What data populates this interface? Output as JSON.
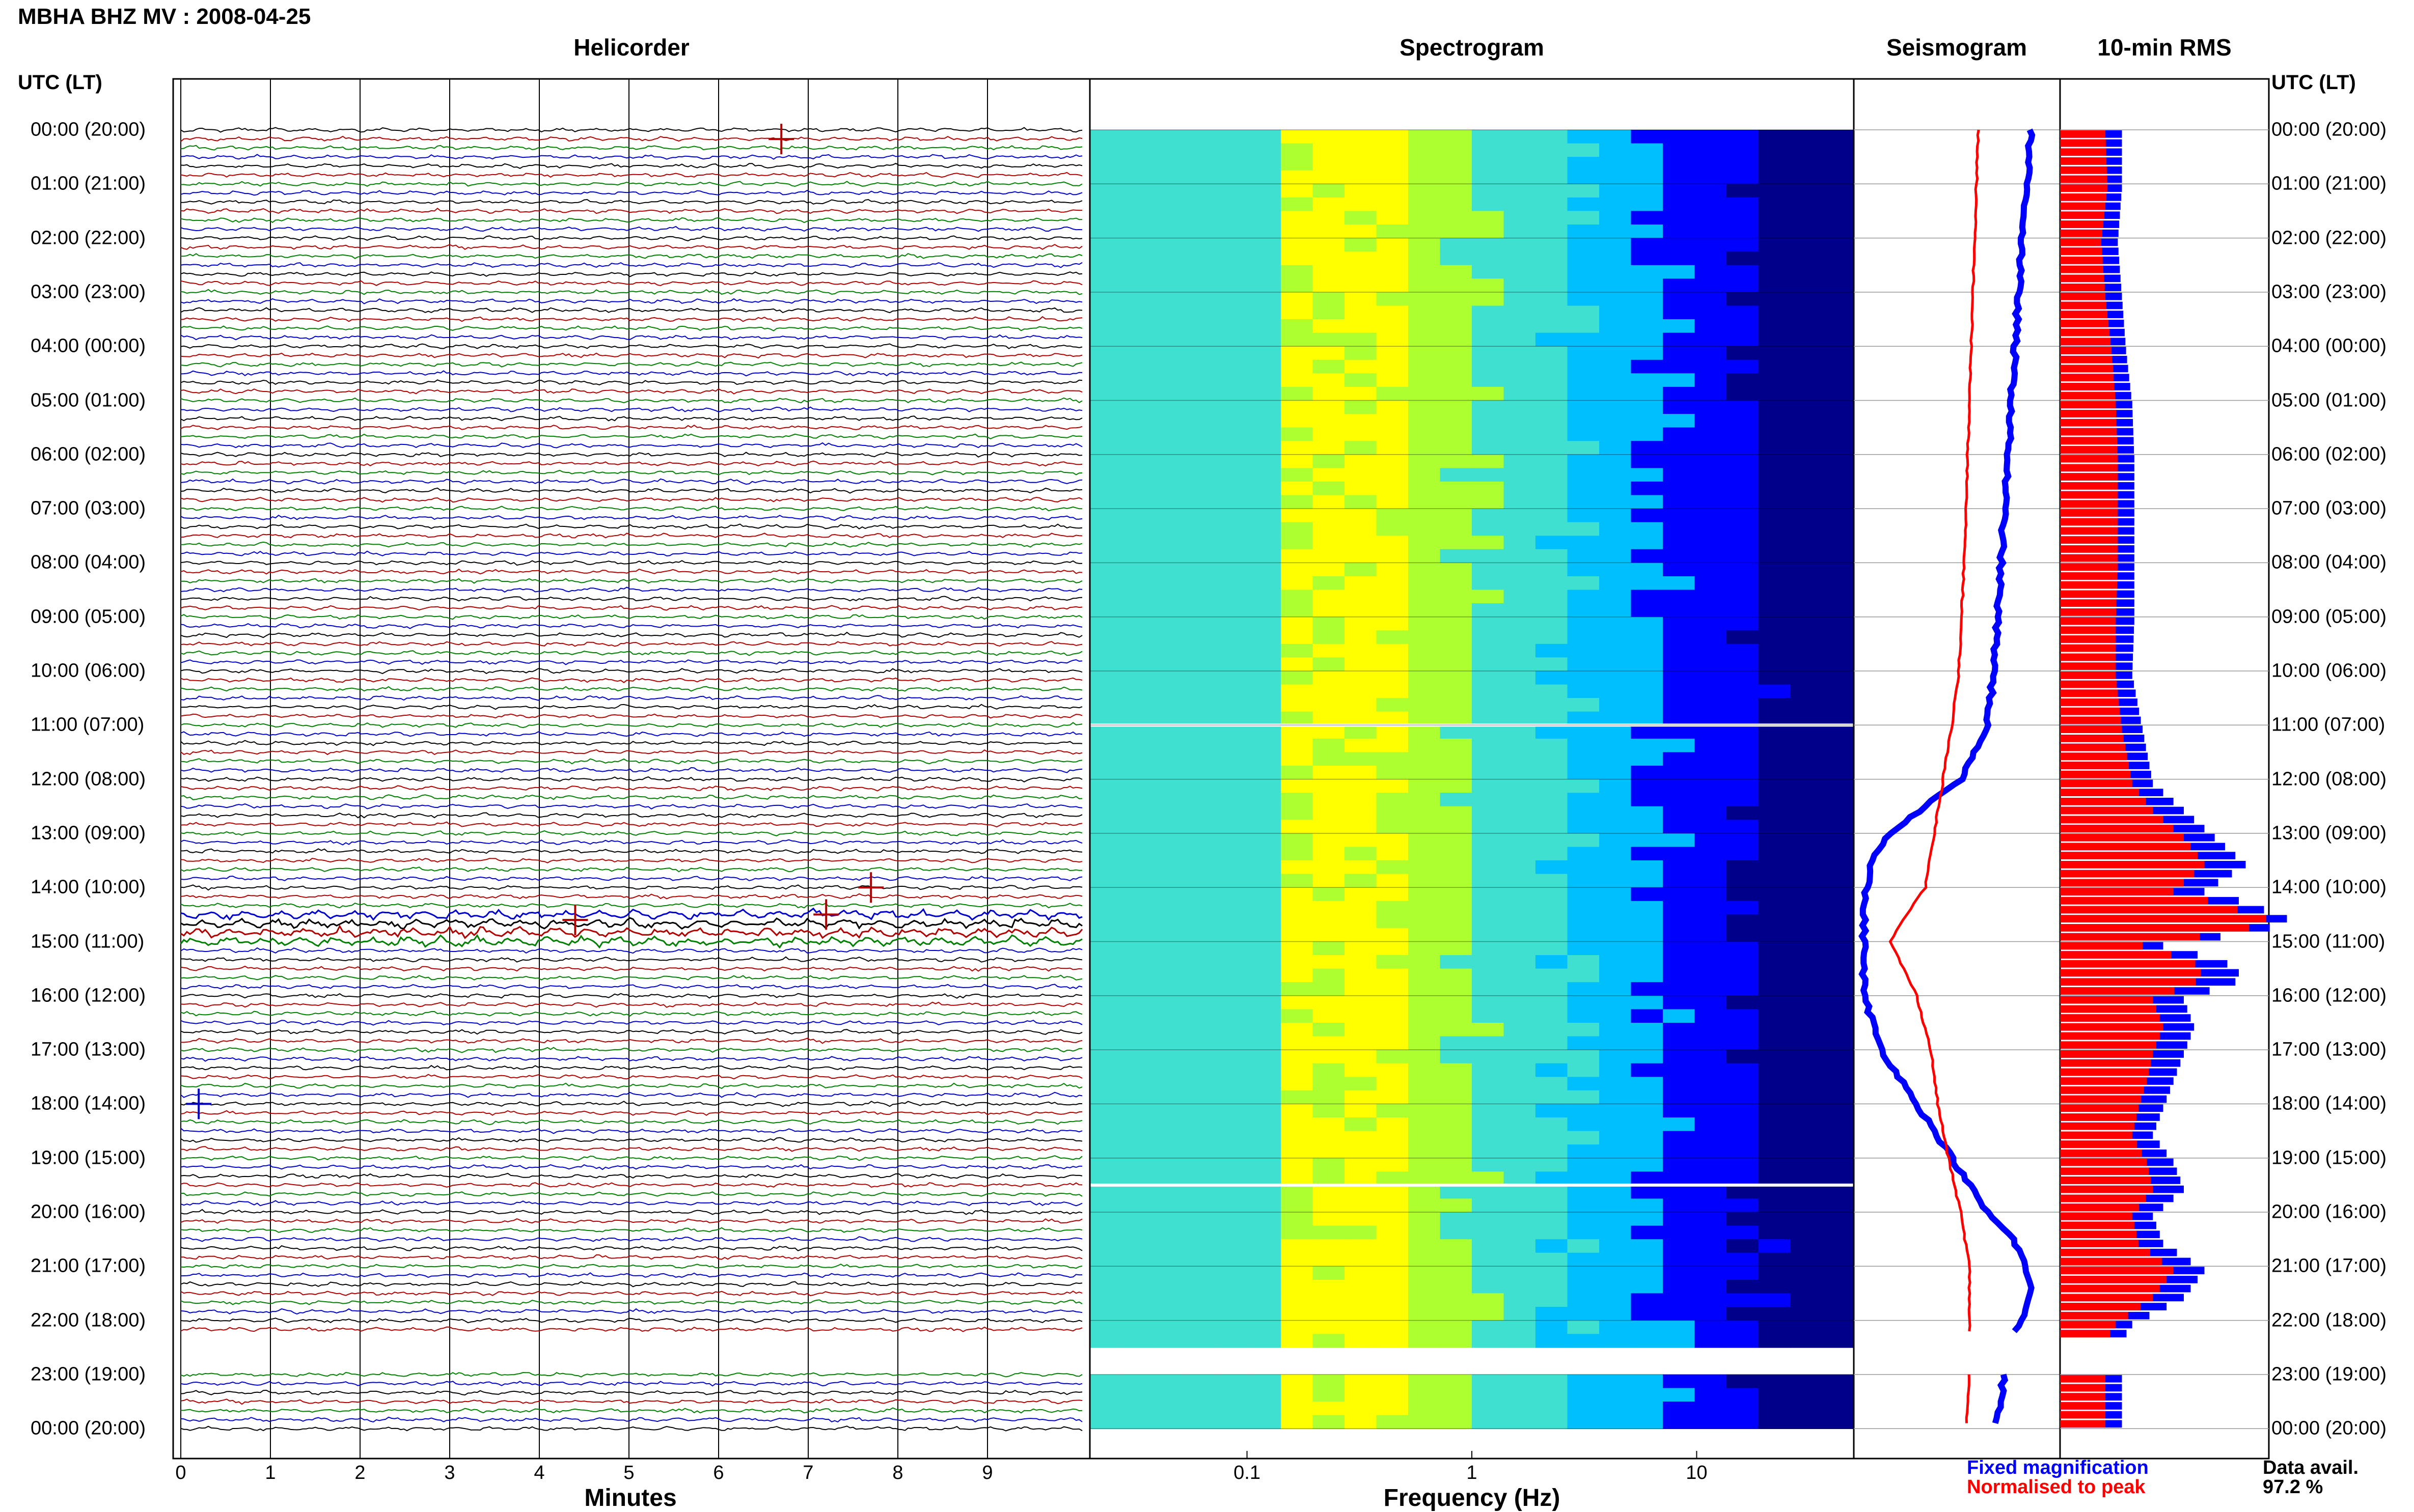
{
  "page_title": "MBHA BHZ MV : 2008-04-25",
  "panels": {
    "helicorder": "Helicorder",
    "spectrogram": "Spectrogram",
    "seismogram": "Seismogram",
    "rms": "10-min RMS"
  },
  "time_axis_label_left": "UTC (LT)",
  "time_axis_label_right": "UTC (LT)",
  "time_labels": [
    "00:00 (20:00)",
    "01:00 (21:00)",
    "02:00 (22:00)",
    "03:00 (23:00)",
    "04:00 (00:00)",
    "05:00 (01:00)",
    "06:00 (02:00)",
    "07:00 (03:00)",
    "08:00 (04:00)",
    "09:00 (05:00)",
    "10:00 (06:00)",
    "11:00 (07:00)",
    "12:00 (08:00)",
    "13:00 (09:00)",
    "14:00 (10:00)",
    "15:00 (11:00)",
    "16:00 (12:00)",
    "17:00 (13:00)",
    "18:00 (14:00)",
    "19:00 (15:00)",
    "20:00 (16:00)",
    "21:00 (17:00)",
    "22:00 (18:00)",
    "23:00 (19:00)",
    "00:00 (20:00)"
  ],
  "legend": {
    "fixed": "Fixed magnification",
    "normalised": "Normalised to peak",
    "fixed_color": "#0000ff",
    "normalised_color": "#ff0000"
  },
  "data_availability": {
    "label": "Data avail.",
    "value": "97.2 %"
  },
  "chart_data": [
    {
      "type": "line",
      "panel": "Helicorder",
      "xlabel": "Minutes",
      "x_ticks": [
        0,
        1,
        2,
        3,
        4,
        5,
        6,
        7,
        8,
        9
      ],
      "xlim": [
        0,
        10
      ],
      "rows_per_hour": 6,
      "hours": 24,
      "trace_colors": [
        "#000000",
        "#b00000",
        "#008000",
        "#0000cc"
      ],
      "data_gaps_hours": [
        [
          22.3,
          23.0
        ]
      ],
      "events": [
        {
          "hour": 0.17,
          "minute": 6.7,
          "color": "#b00000"
        },
        {
          "hour": 14.0,
          "minute": 7.7,
          "color": "#b00000"
        },
        {
          "hour": 14.5,
          "minute": 7.2,
          "color": "#b00000"
        },
        {
          "hour": 14.6,
          "minute": 4.4,
          "color": "#b00000"
        },
        {
          "hour": 18.0,
          "minute": 0.2,
          "color": "#0000cc"
        }
      ],
      "noisy_hours": [
        14.5,
        14.67,
        14.83,
        15.0
      ]
    },
    {
      "type": "heatmap",
      "panel": "Spectrogram",
      "xlabel": "Frequency (Hz)",
      "x_scale": "log",
      "x_ticks": [
        "0.1",
        "1",
        "10"
      ],
      "x_tick_values": [
        0.1,
        1,
        10
      ],
      "xlim": [
        0.02,
        50
      ],
      "dominant_band_hz": [
        0.15,
        0.6
      ],
      "colormap": [
        "#00008b",
        "#0000ff",
        "#00bfff",
        "#40e0d0",
        "#adff2f",
        "#ffff00"
      ],
      "white_gaps_hours": [
        11.0,
        19.5
      ],
      "data_gaps_hours": [
        [
          22.3,
          23.0
        ]
      ]
    },
    {
      "type": "line",
      "panel": "Seismogram",
      "series": [
        {
          "name": "Fixed magnification",
          "color": "#0000ff",
          "hours": [
            0,
            1,
            2,
            3,
            4,
            5,
            6,
            7,
            8,
            9,
            10,
            11,
            12,
            12.5,
            13,
            13.5,
            14,
            14.2,
            15,
            16,
            17,
            18,
            19,
            20,
            20.5,
            21,
            21.5,
            22,
            22.3,
            23,
            24
          ],
          "offset": [
            0.95,
            0.93,
            0.9,
            0.88,
            0.86,
            0.84,
            0.82,
            0.8,
            0.78,
            0.76,
            0.74,
            0.7,
            0.55,
            0.35,
            0.15,
            0.05,
            0.02,
            0.0,
            0.0,
            0.0,
            0.1,
            0.3,
            0.5,
            0.7,
            0.85,
            0.92,
            0.95,
            0.9,
            0.85,
            0.8,
            0.75
          ]
        },
        {
          "name": "Normalised to peak",
          "color": "#ff0000",
          "hours": [
            0,
            2,
            4,
            6,
            8,
            10,
            11,
            12,
            13,
            14,
            14.7,
            15,
            16,
            17,
            18,
            19,
            20,
            21,
            22,
            22.3,
            23,
            24
          ],
          "offset": [
            0.65,
            0.63,
            0.61,
            0.59,
            0.57,
            0.54,
            0.5,
            0.45,
            0.4,
            0.35,
            0.2,
            0.15,
            0.3,
            0.38,
            0.42,
            0.48,
            0.55,
            0.6,
            0.6,
            0.6,
            0.6,
            0.58
          ]
        }
      ]
    },
    {
      "type": "bar",
      "panel": "10-min RMS",
      "orientation": "horizontal",
      "bin_minutes": 10,
      "hours": [
        0,
        1,
        2,
        3,
        4,
        5,
        6,
        7,
        8,
        9,
        10,
        11,
        12,
        12.5,
        13,
        13.5,
        14,
        14.2,
        14.5,
        14.7,
        15,
        15.3,
        15.6,
        16,
        16.5,
        17,
        17.5,
        18,
        18.5,
        19,
        19.5,
        20,
        20.5,
        21,
        21.5,
        22,
        22.3,
        23,
        24
      ],
      "series": [
        {
          "name": "Fixed magnification",
          "color": "#0000ff",
          "values": [
            0.3,
            0.3,
            0.28,
            0.3,
            0.32,
            0.35,
            0.36,
            0.36,
            0.36,
            0.36,
            0.35,
            0.4,
            0.45,
            0.6,
            0.75,
            0.9,
            0.7,
            0.9,
            1.1,
            1.0,
            0.5,
            0.8,
            0.9,
            0.6,
            0.65,
            0.6,
            0.55,
            0.5,
            0.45,
            0.55,
            0.6,
            0.45,
            0.5,
            0.7,
            0.6,
            0.35,
            0.3,
            0.3,
            0.3
          ]
        },
        {
          "name": "Normalised to peak",
          "color": "#ff0000",
          "values": [
            0.22,
            0.23,
            0.2,
            0.22,
            0.25,
            0.27,
            0.28,
            0.28,
            0.28,
            0.27,
            0.27,
            0.3,
            0.35,
            0.45,
            0.6,
            0.7,
            0.55,
            0.75,
            1.0,
            0.9,
            0.4,
            0.65,
            0.7,
            0.45,
            0.5,
            0.45,
            0.42,
            0.38,
            0.35,
            0.42,
            0.45,
            0.35,
            0.38,
            0.55,
            0.45,
            0.27,
            0.22,
            0.22,
            0.22
          ]
        }
      ]
    }
  ]
}
